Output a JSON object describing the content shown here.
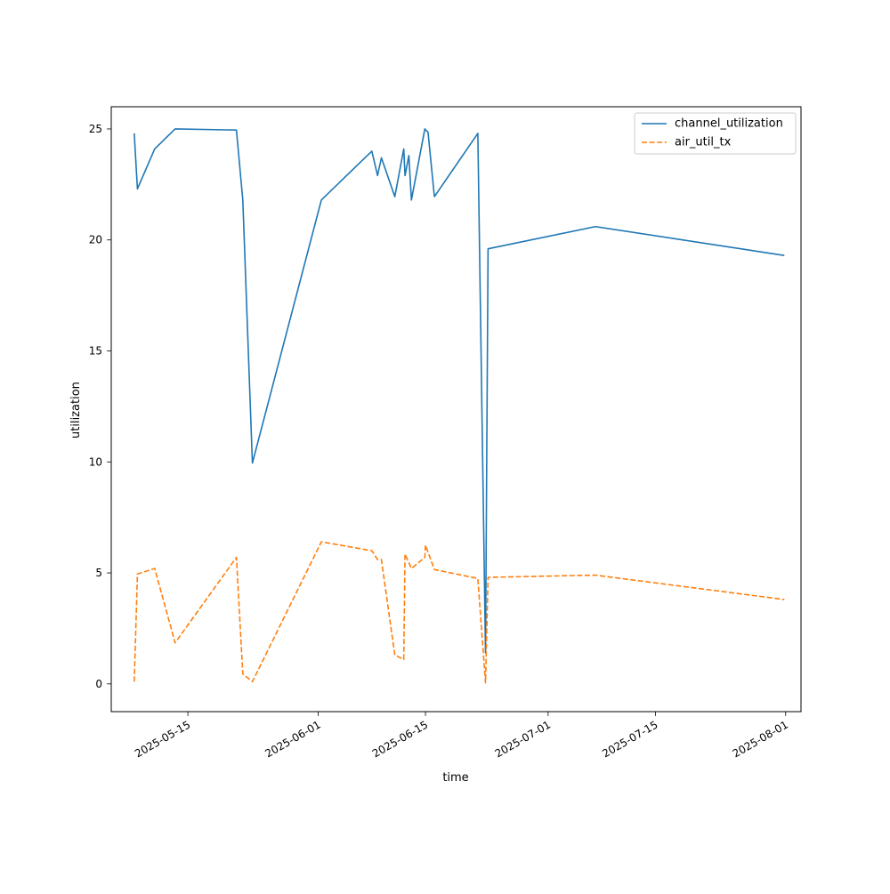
{
  "chart_data": {
    "type": "line",
    "title": "",
    "xlabel": "time",
    "ylabel": "utilization",
    "x_axis": "date",
    "xlim": [
      "2025-05-05T00:00",
      "2025-08-03T00:00"
    ],
    "ylim": [
      -1.25,
      26.0
    ],
    "x_ticks": [
      "2025-05-15",
      "2025-06-01",
      "2025-06-15",
      "2025-07-01",
      "2025-07-15",
      "2025-08-01"
    ],
    "y_ticks": [
      0,
      5,
      10,
      15,
      20,
      25
    ],
    "grid": false,
    "legend_position": "upper right",
    "series": [
      {
        "name": "channel_utilization",
        "color": "#1f77b4",
        "dash": "solid",
        "points": [
          [
            "2025-05-08T00:00",
            24.8
          ],
          [
            "2025-05-08T10:00",
            22.3
          ],
          [
            "2025-05-10T16:00",
            24.1
          ],
          [
            "2025-05-13T08:00",
            25.0
          ],
          [
            "2025-05-21T08:00",
            24.95
          ],
          [
            "2025-05-22T04:00",
            21.8
          ],
          [
            "2025-05-23T10:00",
            9.95
          ],
          [
            "2025-06-01T10:00",
            21.8
          ],
          [
            "2025-06-08T00:00",
            24.0
          ],
          [
            "2025-06-08T18:00",
            22.9
          ],
          [
            "2025-06-09T06:00",
            23.7
          ],
          [
            "2025-06-11T00:00",
            21.95
          ],
          [
            "2025-06-12T04:00",
            24.1
          ],
          [
            "2025-06-12T08:00",
            22.9
          ],
          [
            "2025-06-12T20:00",
            23.8
          ],
          [
            "2025-06-13T04:00",
            21.8
          ],
          [
            "2025-06-14T22:00",
            25.0
          ],
          [
            "2025-06-15T08:00",
            24.85
          ],
          [
            "2025-06-16T04:00",
            21.95
          ],
          [
            "2025-06-21T20:00",
            24.8
          ],
          [
            "2025-06-22T20:00",
            1.4
          ],
          [
            "2025-06-23T04:00",
            19.6
          ],
          [
            "2025-07-07T04:00",
            20.6
          ],
          [
            "2025-07-31T20:00",
            19.3
          ]
        ]
      },
      {
        "name": "air_util_tx",
        "color": "#ff7f0e",
        "dash": "dashed",
        "points": [
          [
            "2025-05-08T00:00",
            0.1
          ],
          [
            "2025-05-08T10:00",
            4.95
          ],
          [
            "2025-05-10T16:00",
            5.2
          ],
          [
            "2025-05-13T08:00",
            1.85
          ],
          [
            "2025-05-21T08:00",
            5.7
          ],
          [
            "2025-05-22T04:00",
            0.45
          ],
          [
            "2025-05-23T10:00",
            0.1
          ],
          [
            "2025-06-01T10:00",
            6.4
          ],
          [
            "2025-06-08T00:00",
            6.0
          ],
          [
            "2025-06-08T18:00",
            5.6
          ],
          [
            "2025-06-09T06:00",
            5.6
          ],
          [
            "2025-06-11T00:00",
            1.3
          ],
          [
            "2025-06-12T04:00",
            1.1
          ],
          [
            "2025-06-12T08:00",
            5.85
          ],
          [
            "2025-06-13T04:00",
            5.2
          ],
          [
            "2025-06-14T22:00",
            5.7
          ],
          [
            "2025-06-15T00:00",
            6.25
          ],
          [
            "2025-06-16T04:00",
            5.15
          ],
          [
            "2025-06-21T20:00",
            4.75
          ],
          [
            "2025-06-22T20:00",
            0.05
          ],
          [
            "2025-06-23T04:00",
            4.8
          ],
          [
            "2025-07-07T04:00",
            4.9
          ],
          [
            "2025-07-31T20:00",
            3.8
          ]
        ]
      }
    ]
  }
}
